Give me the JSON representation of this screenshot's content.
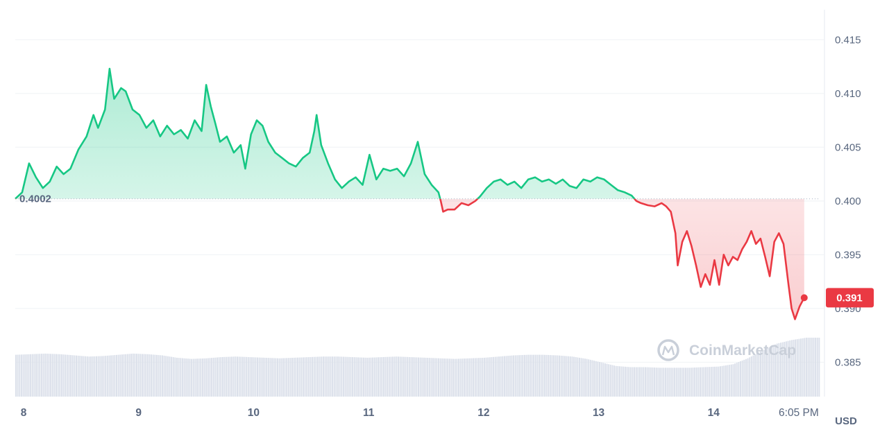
{
  "chart_data": {
    "type": "line",
    "currency_label": "USD",
    "watermark": "CoinMarketCap",
    "baseline": 0.4002,
    "baseline_label": "0.4002",
    "current_price": 0.391,
    "current_price_label": "0.391",
    "ylim": [
      0.3818,
      0.4165
    ],
    "y_ticks": [
      {
        "value": 0.415,
        "label": "0.415"
      },
      {
        "value": 0.41,
        "label": "0.410"
      },
      {
        "value": 0.405,
        "label": "0.405"
      },
      {
        "value": 0.4,
        "label": "0.400"
      },
      {
        "value": 0.395,
        "label": "0.395"
      },
      {
        "value": 0.39,
        "label": "0.390"
      },
      {
        "value": 0.385,
        "label": "0.385"
      }
    ],
    "xlim": [
      0,
      7.0
    ],
    "x_ticks": [
      {
        "value": 0,
        "label": "8"
      },
      {
        "value": 1,
        "label": "9"
      },
      {
        "value": 2,
        "label": "10"
      },
      {
        "value": 3,
        "label": "11"
      },
      {
        "value": 4,
        "label": "12"
      },
      {
        "value": 5,
        "label": "13"
      },
      {
        "value": 6,
        "label": "14"
      },
      {
        "value": 6.74,
        "label": "6:05 PM"
      }
    ],
    "colors": {
      "up": "#16c784",
      "down": "#ea3943",
      "volume": "#dbe0ea",
      "grid": "#eff2f5"
    },
    "series": [
      {
        "values": [
          [
            0.0,
            0.4002
          ],
          [
            0.06,
            0.4008
          ],
          [
            0.12,
            0.4035
          ],
          [
            0.18,
            0.4022
          ],
          [
            0.24,
            0.4012
          ],
          [
            0.3,
            0.4018
          ],
          [
            0.36,
            0.4032
          ],
          [
            0.42,
            0.4025
          ],
          [
            0.48,
            0.403
          ],
          [
            0.55,
            0.4048
          ],
          [
            0.62,
            0.406
          ],
          [
            0.68,
            0.408
          ],
          [
            0.72,
            0.4068
          ],
          [
            0.78,
            0.4085
          ],
          [
            0.82,
            0.4123
          ],
          [
            0.86,
            0.4095
          ],
          [
            0.92,
            0.4105
          ],
          [
            0.96,
            0.4102
          ],
          [
            1.02,
            0.4085
          ],
          [
            1.08,
            0.408
          ],
          [
            1.14,
            0.4068
          ],
          [
            1.2,
            0.4075
          ],
          [
            1.26,
            0.406
          ],
          [
            1.32,
            0.407
          ],
          [
            1.38,
            0.4062
          ],
          [
            1.44,
            0.4066
          ],
          [
            1.5,
            0.4058
          ],
          [
            1.56,
            0.4075
          ],
          [
            1.62,
            0.4065
          ],
          [
            1.66,
            0.4108
          ],
          [
            1.7,
            0.4088
          ],
          [
            1.74,
            0.4072
          ],
          [
            1.78,
            0.4055
          ],
          [
            1.84,
            0.406
          ],
          [
            1.9,
            0.4045
          ],
          [
            1.96,
            0.4052
          ],
          [
            2.0,
            0.403
          ],
          [
            2.05,
            0.4062
          ],
          [
            2.1,
            0.4075
          ],
          [
            2.15,
            0.407
          ],
          [
            2.2,
            0.4055
          ],
          [
            2.26,
            0.4045
          ],
          [
            2.32,
            0.404
          ],
          [
            2.38,
            0.4035
          ],
          [
            2.44,
            0.4032
          ],
          [
            2.5,
            0.404
          ],
          [
            2.56,
            0.4045
          ],
          [
            2.6,
            0.4065
          ],
          [
            2.62,
            0.408
          ],
          [
            2.66,
            0.4052
          ],
          [
            2.72,
            0.4035
          ],
          [
            2.78,
            0.402
          ],
          [
            2.84,
            0.4012
          ],
          [
            2.9,
            0.4018
          ],
          [
            2.96,
            0.4022
          ],
          [
            3.02,
            0.4015
          ],
          [
            3.08,
            0.4043
          ],
          [
            3.14,
            0.402
          ],
          [
            3.2,
            0.403
          ],
          [
            3.26,
            0.4028
          ],
          [
            3.32,
            0.403
          ],
          [
            3.38,
            0.4023
          ],
          [
            3.44,
            0.4035
          ],
          [
            3.5,
            0.4055
          ],
          [
            3.56,
            0.4025
          ],
          [
            3.62,
            0.4015
          ],
          [
            3.68,
            0.4008
          ],
          [
            3.7,
            0.4
          ],
          [
            3.72,
            0.399
          ],
          [
            3.76,
            0.3992
          ],
          [
            3.82,
            0.3992
          ],
          [
            3.88,
            0.3998
          ],
          [
            3.94,
            0.3996
          ],
          [
            4.0,
            0.4
          ],
          [
            4.04,
            0.4004
          ],
          [
            4.1,
            0.4012
          ],
          [
            4.16,
            0.4018
          ],
          [
            4.22,
            0.402
          ],
          [
            4.28,
            0.4015
          ],
          [
            4.34,
            0.4018
          ],
          [
            4.4,
            0.4012
          ],
          [
            4.46,
            0.402
          ],
          [
            4.52,
            0.4022
          ],
          [
            4.58,
            0.4018
          ],
          [
            4.64,
            0.402
          ],
          [
            4.7,
            0.4016
          ],
          [
            4.76,
            0.402
          ],
          [
            4.82,
            0.4014
          ],
          [
            4.88,
            0.4012
          ],
          [
            4.94,
            0.402
          ],
          [
            5.0,
            0.4018
          ],
          [
            5.06,
            0.4022
          ],
          [
            5.12,
            0.402
          ],
          [
            5.18,
            0.4015
          ],
          [
            5.24,
            0.401
          ],
          [
            5.3,
            0.4008
          ],
          [
            5.36,
            0.4005
          ],
          [
            5.4,
            0.4
          ],
          [
            5.44,
            0.3998
          ],
          [
            5.5,
            0.3996
          ],
          [
            5.56,
            0.3995
          ],
          [
            5.62,
            0.3998
          ],
          [
            5.66,
            0.3995
          ],
          [
            5.7,
            0.399
          ],
          [
            5.74,
            0.397
          ],
          [
            5.76,
            0.394
          ],
          [
            5.8,
            0.3962
          ],
          [
            5.84,
            0.3972
          ],
          [
            5.88,
            0.3958
          ],
          [
            5.92,
            0.394
          ],
          [
            5.96,
            0.392
          ],
          [
            6.0,
            0.3932
          ],
          [
            6.04,
            0.3922
          ],
          [
            6.08,
            0.3945
          ],
          [
            6.12,
            0.3922
          ],
          [
            6.16,
            0.395
          ],
          [
            6.2,
            0.394
          ],
          [
            6.24,
            0.3948
          ],
          [
            6.28,
            0.3945
          ],
          [
            6.32,
            0.3955
          ],
          [
            6.36,
            0.3962
          ],
          [
            6.4,
            0.3972
          ],
          [
            6.44,
            0.396
          ],
          [
            6.48,
            0.3965
          ],
          [
            6.52,
            0.3948
          ],
          [
            6.56,
            0.393
          ],
          [
            6.6,
            0.3962
          ],
          [
            6.64,
            0.397
          ],
          [
            6.68,
            0.396
          ],
          [
            6.72,
            0.3925
          ],
          [
            6.75,
            0.39
          ],
          [
            6.78,
            0.389
          ],
          [
            6.82,
            0.3902
          ],
          [
            6.86,
            0.391
          ]
        ]
      }
    ],
    "volume": [
      0.71,
      0.72,
      0.73,
      0.72,
      0.7,
      0.68,
      0.69,
      0.71,
      0.73,
      0.72,
      0.7,
      0.66,
      0.64,
      0.65,
      0.67,
      0.68,
      0.67,
      0.66,
      0.65,
      0.66,
      0.67,
      0.68,
      0.68,
      0.67,
      0.66,
      0.67,
      0.68,
      0.67,
      0.66,
      0.65,
      0.64,
      0.65,
      0.66,
      0.68,
      0.7,
      0.71,
      0.71,
      0.7,
      0.68,
      0.64,
      0.58,
      0.52,
      0.5,
      0.5,
      0.49,
      0.49,
      0.49,
      0.5,
      0.51,
      0.55,
      0.65,
      0.78,
      0.9,
      0.96,
      1.0,
      1.0
    ]
  }
}
